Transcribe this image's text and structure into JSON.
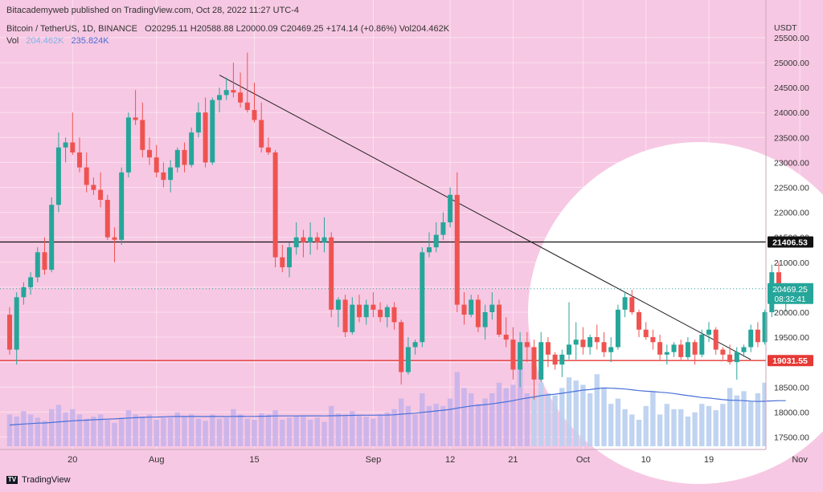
{
  "header": {
    "publisher_line": "Bitacademyweb published on TradingView.com, Oct 28, 2022 11:27 UTC-4",
    "symbol": "Bitcoin / TetherUS, 1D, BINANCE",
    "ohlc": "O20295.11 H20588.88 L20000.09 C20469.25 +174.14 (+0.86%) Vol204.462K",
    "vol_label": "Vol",
    "vol_value": "204.462K",
    "vol_ma_value": "235.824K"
  },
  "footer": {
    "brand": "TradingView",
    "logo_text": "TV"
  },
  "colors": {
    "up": "#26a69a",
    "down": "#ef5350",
    "background": "#f7c8e3",
    "vol_ma": "#4a6fd8",
    "support": "#e53935",
    "resistance": "#222222"
  },
  "chart_data": {
    "type": "candlestick",
    "y_axis_unit": "USDT",
    "ylim": [
      17250,
      25900
    ],
    "y_ticks": [
      17500,
      18000,
      18500,
      19000,
      19500,
      20000,
      20500,
      21000,
      21500,
      22000,
      22500,
      23000,
      23500,
      24000,
      24500,
      25000,
      25500
    ],
    "x_ticks": [
      {
        "label": "20",
        "index": 9
      },
      {
        "label": "Aug",
        "index": 21
      },
      {
        "label": "15",
        "index": 35
      },
      {
        "label": "Sep",
        "index": 52
      },
      {
        "label": "12",
        "index": 63
      },
      {
        "label": "21",
        "index": 72
      },
      {
        "label": "Oct",
        "index": 82
      },
      {
        "label": "10",
        "index": 91
      },
      {
        "label": "19",
        "index": 100
      },
      {
        "label": "Nov",
        "index": 113
      }
    ],
    "horizontal_lines": [
      {
        "price": 21406.53,
        "label": "21406.53",
        "color": "#111111"
      },
      {
        "price": 19031.55,
        "label": "19031.55",
        "color": "#e53935"
      }
    ],
    "last_price": {
      "price": 20469.25,
      "label": "20469.25",
      "countdown": "08:32:41"
    },
    "trendline": [
      {
        "index": 30,
        "price": 24750
      },
      {
        "index": 106,
        "price": 19050
      }
    ],
    "candles": [
      [
        19950,
        20100,
        19150,
        19250
      ],
      [
        19250,
        20400,
        18950,
        20300
      ],
      [
        20300,
        20600,
        20150,
        20500
      ],
      [
        20500,
        20800,
        20350,
        20700
      ],
      [
        20700,
        21300,
        20600,
        21200
      ],
      [
        21200,
        21500,
        20750,
        20850
      ],
      [
        20850,
        22300,
        20800,
        22150
      ],
      [
        22150,
        23600,
        22000,
        23300
      ],
      [
        23300,
        23500,
        23000,
        23400
      ],
      [
        23400,
        24000,
        23150,
        23200
      ],
      [
        23200,
        23500,
        22800,
        22900
      ],
      [
        22900,
        23200,
        22400,
        22550
      ],
      [
        22550,
        22700,
        22350,
        22450
      ],
      [
        22450,
        22800,
        22100,
        22250
      ],
      [
        22250,
        22350,
        21450,
        21500
      ],
      [
        21500,
        21700,
        21000,
        21450
      ],
      [
        21450,
        22900,
        21350,
        22800
      ],
      [
        22800,
        24000,
        22700,
        23900
      ],
      [
        23900,
        24450,
        23750,
        23850
      ],
      [
        23850,
        24200,
        23100,
        23250
      ],
      [
        23250,
        23500,
        22950,
        23100
      ],
      [
        23100,
        23350,
        22700,
        22800
      ],
      [
        22800,
        23000,
        22500,
        22650
      ],
      [
        22650,
        23050,
        22400,
        22900
      ],
      [
        22900,
        23300,
        22800,
        23250
      ],
      [
        23250,
        23400,
        22800,
        22950
      ],
      [
        22950,
        23700,
        22900,
        23600
      ],
      [
        23600,
        24200,
        23500,
        24000
      ],
      [
        24000,
        24300,
        22900,
        23000
      ],
      [
        23000,
        24300,
        22950,
        24250
      ],
      [
        24250,
        24500,
        24000,
        24350
      ],
      [
        24350,
        24700,
        24250,
        24450
      ],
      [
        24450,
        25000,
        24300,
        24400
      ],
      [
        24400,
        24800,
        24100,
        24200
      ],
      [
        24200,
        25200,
        24000,
        24050
      ],
      [
        24050,
        24600,
        23800,
        23850
      ],
      [
        23850,
        24200,
        23200,
        23300
      ],
      [
        23300,
        23500,
        23150,
        23200
      ],
      [
        23200,
        23250,
        20900,
        21100
      ],
      [
        21100,
        21350,
        20800,
        20900
      ],
      [
        20900,
        21400,
        20700,
        21300
      ],
      [
        21300,
        21800,
        21150,
        21500
      ],
      [
        21500,
        21650,
        21100,
        21400
      ],
      [
        21400,
        21800,
        21150,
        21500
      ],
      [
        21500,
        21600,
        21250,
        21400
      ],
      [
        21400,
        21900,
        21200,
        21500
      ],
      [
        21500,
        21600,
        19900,
        20050
      ],
      [
        20050,
        20300,
        19700,
        20250
      ],
      [
        20250,
        20350,
        19500,
        19600
      ],
      [
        19600,
        20300,
        19550,
        20150
      ],
      [
        20150,
        20350,
        19800,
        19900
      ],
      [
        19900,
        20250,
        19750,
        20150
      ],
      [
        20150,
        20400,
        19900,
        20050
      ],
      [
        20050,
        20200,
        19800,
        19900
      ],
      [
        19900,
        20150,
        19700,
        20100
      ],
      [
        20100,
        20200,
        19650,
        19800
      ],
      [
        19800,
        19850,
        18550,
        18800
      ],
      [
        18800,
        19500,
        18750,
        19300
      ],
      [
        19300,
        19450,
        19150,
        19400
      ],
      [
        19400,
        21300,
        19300,
        21200
      ],
      [
        21200,
        21600,
        21100,
        21300
      ],
      [
        21300,
        21800,
        21200,
        21550
      ],
      [
        21550,
        22000,
        21450,
        21800
      ],
      [
        21800,
        22500,
        21700,
        22350
      ],
      [
        22350,
        22800,
        20000,
        20150
      ],
      [
        20150,
        20400,
        19750,
        19950
      ],
      [
        19950,
        20350,
        19900,
        20250
      ],
      [
        20250,
        20350,
        19600,
        19700
      ],
      [
        19700,
        20150,
        19450,
        20000
      ],
      [
        20000,
        20400,
        19850,
        20150
      ],
      [
        20150,
        20250,
        19500,
        19550
      ],
      [
        19550,
        19900,
        19300,
        19450
      ],
      [
        19450,
        19700,
        18650,
        18850
      ],
      [
        18850,
        19600,
        18500,
        19400
      ],
      [
        19400,
        19600,
        19000,
        19300
      ],
      [
        19300,
        19450,
        18250,
        18650
      ],
      [
        18650,
        19600,
        18600,
        19400
      ],
      [
        19400,
        19500,
        18900,
        19150
      ],
      [
        19150,
        19200,
        18850,
        18950
      ],
      [
        18950,
        19250,
        18700,
        19150
      ],
      [
        19150,
        20200,
        19050,
        19350
      ],
      [
        19350,
        19800,
        19050,
        19450
      ],
      [
        19450,
        19700,
        19150,
        19300
      ],
      [
        19300,
        19550,
        19150,
        19500
      ],
      [
        19500,
        19750,
        19250,
        19400
      ],
      [
        19400,
        19600,
        19100,
        19200
      ],
      [
        19200,
        19500,
        19000,
        19300
      ],
      [
        19300,
        20150,
        19250,
        20050
      ],
      [
        20050,
        20400,
        19900,
        20300
      ],
      [
        20300,
        20450,
        19950,
        20000
      ],
      [
        20000,
        20050,
        19500,
        19650
      ],
      [
        19650,
        19800,
        19450,
        19500
      ],
      [
        19500,
        19650,
        19250,
        19400
      ],
      [
        19400,
        19550,
        19050,
        19150
      ],
      [
        19150,
        19350,
        18950,
        19200
      ],
      [
        19200,
        19400,
        19100,
        19350
      ],
      [
        19350,
        19450,
        19050,
        19100
      ],
      [
        19100,
        19500,
        19050,
        19400
      ],
      [
        19400,
        19450,
        18950,
        19150
      ],
      [
        19150,
        19650,
        19100,
        19550
      ],
      [
        19550,
        19800,
        19400,
        19650
      ],
      [
        19650,
        19700,
        19150,
        19250
      ],
      [
        19250,
        19300,
        19050,
        19150
      ],
      [
        19150,
        19350,
        18950,
        19000
      ],
      [
        19000,
        19300,
        18650,
        19200
      ],
      [
        19200,
        19350,
        19100,
        19300
      ],
      [
        19300,
        19750,
        19200,
        19650
      ],
      [
        19650,
        19800,
        19300,
        19400
      ],
      [
        19400,
        20050,
        19350,
        20000
      ],
      [
        20000,
        20950,
        19900,
        20800
      ],
      [
        20800,
        21000,
        20200,
        20350
      ],
      [
        20350,
        20550,
        20000,
        20470
      ]
    ],
    "volumes": [
      30,
      28,
      33,
      30,
      27,
      24,
      35,
      39,
      32,
      35,
      30,
      26,
      28,
      30,
      25,
      22,
      27,
      34,
      30,
      28,
      30,
      25,
      27,
      27,
      32,
      28,
      30,
      26,
      24,
      30,
      26,
      27,
      35,
      30,
      26,
      25,
      31,
      30,
      34,
      25,
      27,
      29,
      28,
      25,
      27,
      23,
      38,
      31,
      30,
      33,
      29,
      28,
      26,
      30,
      32,
      35,
      45,
      38,
      30,
      50,
      38,
      40,
      38,
      45,
      70,
      55,
      50,
      40,
      45,
      50,
      60,
      55,
      58,
      75,
      50,
      48,
      60,
      50,
      48,
      55,
      65,
      62,
      58,
      50,
      68,
      55,
      40,
      45,
      35,
      30,
      25,
      38,
      52,
      30,
      40,
      35,
      35,
      28,
      32,
      40,
      38,
      34,
      40,
      55,
      48,
      52,
      42,
      50,
      60,
      45,
      42,
      40
    ],
    "volume_ma": [
      20,
      20.5,
      21,
      21.4,
      21.8,
      22,
      22.4,
      23,
      23.5,
      24,
      24.3,
      24.6,
      25,
      25.3,
      25.6,
      25.8,
      26.2,
      26.7,
      27,
      27.3,
      27.5,
      27.6,
      27.8,
      28,
      28.1,
      28.1,
      28.2,
      28.1,
      28,
      28.1,
      28.1,
      28,
      28.2,
      28.3,
      28.2,
      28.2,
      28.3,
      28.4,
      28.6,
      28.6,
      28.6,
      28.6,
      28.7,
      28.7,
      28.7,
      28.6,
      28.8,
      28.9,
      29,
      29.2,
      29.3,
      29.3,
      29.3,
      29.4,
      29.5,
      29.7,
      30.3,
      30.8,
      31.2,
      32,
      32.6,
      33.3,
      34,
      34.8,
      36,
      37,
      38,
      38.6,
      39.3,
      40,
      41,
      42,
      43,
      44.5,
      45.5,
      46.5,
      47.8,
      48.5,
      49.2,
      50,
      51,
      52,
      53,
      53.5,
      54.5,
      55,
      54.8,
      54.5,
      54,
      53.3,
      52.5,
      52,
      51.6,
      51,
      50.5,
      49.8,
      48.8,
      47.8,
      47,
      46,
      45.5,
      44.8,
      44,
      43.5,
      43.3,
      43,
      42.6,
      42.3,
      42.5,
      42.8,
      43,
      43
    ]
  }
}
